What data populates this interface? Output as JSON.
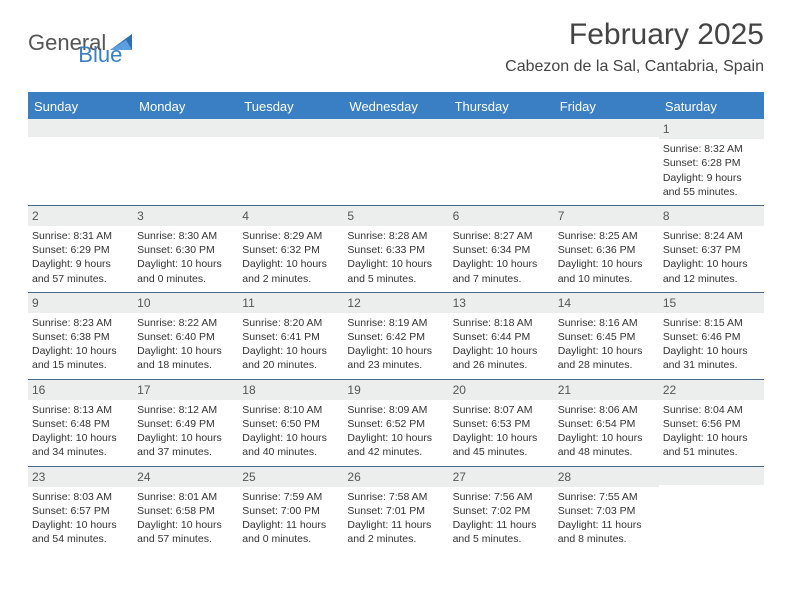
{
  "logo": {
    "text1": "General",
    "text2": "Blue"
  },
  "title": "February 2025",
  "location": "Cabezon de la Sal, Cantabria, Spain",
  "colors": {
    "header_bg": "#3a7fc4",
    "header_text": "#ffffff",
    "daynum_bg": "#eceeee",
    "border": "#4a6a8a",
    "page_bg": "#ffffff",
    "body_text": "#333333"
  },
  "day_names": [
    "Sunday",
    "Monday",
    "Tuesday",
    "Wednesday",
    "Thursday",
    "Friday",
    "Saturday"
  ],
  "weeks": [
    [
      null,
      null,
      null,
      null,
      null,
      null,
      {
        "n": "1",
        "sr": "Sunrise: 8:32 AM",
        "ss": "Sunset: 6:28 PM",
        "d1": "Daylight: 9 hours",
        "d2": "and 55 minutes."
      }
    ],
    [
      {
        "n": "2",
        "sr": "Sunrise: 8:31 AM",
        "ss": "Sunset: 6:29 PM",
        "d1": "Daylight: 9 hours",
        "d2": "and 57 minutes."
      },
      {
        "n": "3",
        "sr": "Sunrise: 8:30 AM",
        "ss": "Sunset: 6:30 PM",
        "d1": "Daylight: 10 hours",
        "d2": "and 0 minutes."
      },
      {
        "n": "4",
        "sr": "Sunrise: 8:29 AM",
        "ss": "Sunset: 6:32 PM",
        "d1": "Daylight: 10 hours",
        "d2": "and 2 minutes."
      },
      {
        "n": "5",
        "sr": "Sunrise: 8:28 AM",
        "ss": "Sunset: 6:33 PM",
        "d1": "Daylight: 10 hours",
        "d2": "and 5 minutes."
      },
      {
        "n": "6",
        "sr": "Sunrise: 8:27 AM",
        "ss": "Sunset: 6:34 PM",
        "d1": "Daylight: 10 hours",
        "d2": "and 7 minutes."
      },
      {
        "n": "7",
        "sr": "Sunrise: 8:25 AM",
        "ss": "Sunset: 6:36 PM",
        "d1": "Daylight: 10 hours",
        "d2": "and 10 minutes."
      },
      {
        "n": "8",
        "sr": "Sunrise: 8:24 AM",
        "ss": "Sunset: 6:37 PM",
        "d1": "Daylight: 10 hours",
        "d2": "and 12 minutes."
      }
    ],
    [
      {
        "n": "9",
        "sr": "Sunrise: 8:23 AM",
        "ss": "Sunset: 6:38 PM",
        "d1": "Daylight: 10 hours",
        "d2": "and 15 minutes."
      },
      {
        "n": "10",
        "sr": "Sunrise: 8:22 AM",
        "ss": "Sunset: 6:40 PM",
        "d1": "Daylight: 10 hours",
        "d2": "and 18 minutes."
      },
      {
        "n": "11",
        "sr": "Sunrise: 8:20 AM",
        "ss": "Sunset: 6:41 PM",
        "d1": "Daylight: 10 hours",
        "d2": "and 20 minutes."
      },
      {
        "n": "12",
        "sr": "Sunrise: 8:19 AM",
        "ss": "Sunset: 6:42 PM",
        "d1": "Daylight: 10 hours",
        "d2": "and 23 minutes."
      },
      {
        "n": "13",
        "sr": "Sunrise: 8:18 AM",
        "ss": "Sunset: 6:44 PM",
        "d1": "Daylight: 10 hours",
        "d2": "and 26 minutes."
      },
      {
        "n": "14",
        "sr": "Sunrise: 8:16 AM",
        "ss": "Sunset: 6:45 PM",
        "d1": "Daylight: 10 hours",
        "d2": "and 28 minutes."
      },
      {
        "n": "15",
        "sr": "Sunrise: 8:15 AM",
        "ss": "Sunset: 6:46 PM",
        "d1": "Daylight: 10 hours",
        "d2": "and 31 minutes."
      }
    ],
    [
      {
        "n": "16",
        "sr": "Sunrise: 8:13 AM",
        "ss": "Sunset: 6:48 PM",
        "d1": "Daylight: 10 hours",
        "d2": "and 34 minutes."
      },
      {
        "n": "17",
        "sr": "Sunrise: 8:12 AM",
        "ss": "Sunset: 6:49 PM",
        "d1": "Daylight: 10 hours",
        "d2": "and 37 minutes."
      },
      {
        "n": "18",
        "sr": "Sunrise: 8:10 AM",
        "ss": "Sunset: 6:50 PM",
        "d1": "Daylight: 10 hours",
        "d2": "and 40 minutes."
      },
      {
        "n": "19",
        "sr": "Sunrise: 8:09 AM",
        "ss": "Sunset: 6:52 PM",
        "d1": "Daylight: 10 hours",
        "d2": "and 42 minutes."
      },
      {
        "n": "20",
        "sr": "Sunrise: 8:07 AM",
        "ss": "Sunset: 6:53 PM",
        "d1": "Daylight: 10 hours",
        "d2": "and 45 minutes."
      },
      {
        "n": "21",
        "sr": "Sunrise: 8:06 AM",
        "ss": "Sunset: 6:54 PM",
        "d1": "Daylight: 10 hours",
        "d2": "and 48 minutes."
      },
      {
        "n": "22",
        "sr": "Sunrise: 8:04 AM",
        "ss": "Sunset: 6:56 PM",
        "d1": "Daylight: 10 hours",
        "d2": "and 51 minutes."
      }
    ],
    [
      {
        "n": "23",
        "sr": "Sunrise: 8:03 AM",
        "ss": "Sunset: 6:57 PM",
        "d1": "Daylight: 10 hours",
        "d2": "and 54 minutes."
      },
      {
        "n": "24",
        "sr": "Sunrise: 8:01 AM",
        "ss": "Sunset: 6:58 PM",
        "d1": "Daylight: 10 hours",
        "d2": "and 57 minutes."
      },
      {
        "n": "25",
        "sr": "Sunrise: 7:59 AM",
        "ss": "Sunset: 7:00 PM",
        "d1": "Daylight: 11 hours",
        "d2": "and 0 minutes."
      },
      {
        "n": "26",
        "sr": "Sunrise: 7:58 AM",
        "ss": "Sunset: 7:01 PM",
        "d1": "Daylight: 11 hours",
        "d2": "and 2 minutes."
      },
      {
        "n": "27",
        "sr": "Sunrise: 7:56 AM",
        "ss": "Sunset: 7:02 PM",
        "d1": "Daylight: 11 hours",
        "d2": "and 5 minutes."
      },
      {
        "n": "28",
        "sr": "Sunrise: 7:55 AM",
        "ss": "Sunset: 7:03 PM",
        "d1": "Daylight: 11 hours",
        "d2": "and 8 minutes."
      },
      null
    ]
  ]
}
